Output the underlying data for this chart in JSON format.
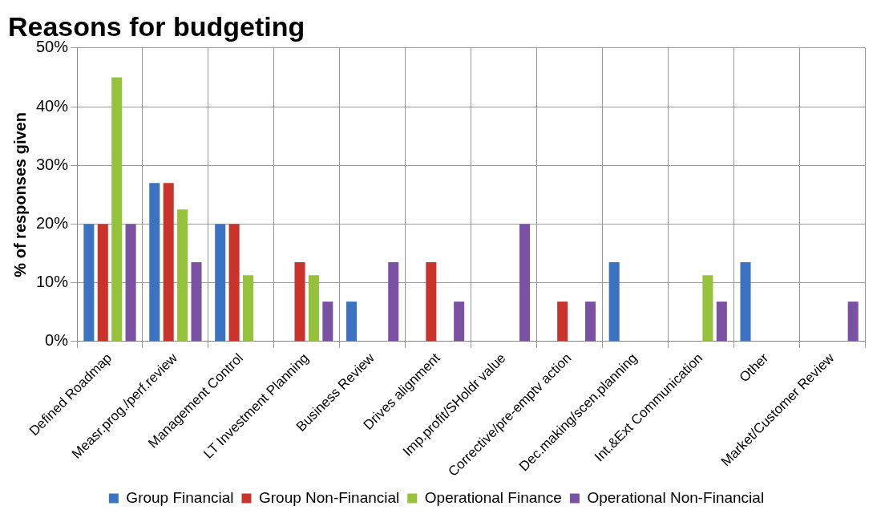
{
  "chart_data": {
    "type": "bar",
    "title": "Reasons for budgeting",
    "ylabel": "% of responses given",
    "categories": [
      "Defined Roadmap",
      "Measr.prog./perf.review",
      "Management Control",
      "LT Investment Planning",
      "Business Review",
      "Drives alignment",
      "Imp.profit/SHoldr value",
      "Corrective/pre-emptv action",
      "Dec.making/scen.planning",
      "Int.&Ext Communication",
      "Other",
      "Market/Customer Review"
    ],
    "series": [
      {
        "name": "Group Financial",
        "color": "#3b72c2",
        "values": [
          20,
          27,
          20,
          null,
          6.8,
          null,
          null,
          null,
          13.5,
          null,
          13.5,
          null
        ]
      },
      {
        "name": "Group Non-Financial",
        "color": "#c9332c",
        "values": [
          20,
          27,
          20,
          13.5,
          null,
          13.5,
          null,
          6.8,
          null,
          null,
          null,
          null
        ]
      },
      {
        "name": "Operational Finance",
        "color": "#94c23a",
        "values": [
          45,
          22.5,
          11.3,
          11.3,
          null,
          null,
          null,
          null,
          null,
          11.3,
          null,
          null
        ]
      },
      {
        "name": "Operational Non-Financial",
        "color": "#7b52a3",
        "values": [
          20,
          13.5,
          null,
          6.8,
          13.5,
          6.8,
          20,
          6.8,
          null,
          6.8,
          null,
          6.8
        ]
      }
    ],
    "ylim": [
      0,
      50
    ],
    "yticks": [
      {
        "value": 0,
        "label": "0%"
      },
      {
        "value": 10,
        "label": "10%"
      },
      {
        "value": 20,
        "label": "20%"
      },
      {
        "value": 30,
        "label": "30%"
      },
      {
        "value": 40,
        "label": "40%"
      },
      {
        "value": 50,
        "label": "50%"
      }
    ],
    "grid": true,
    "legend": "bottom"
  }
}
